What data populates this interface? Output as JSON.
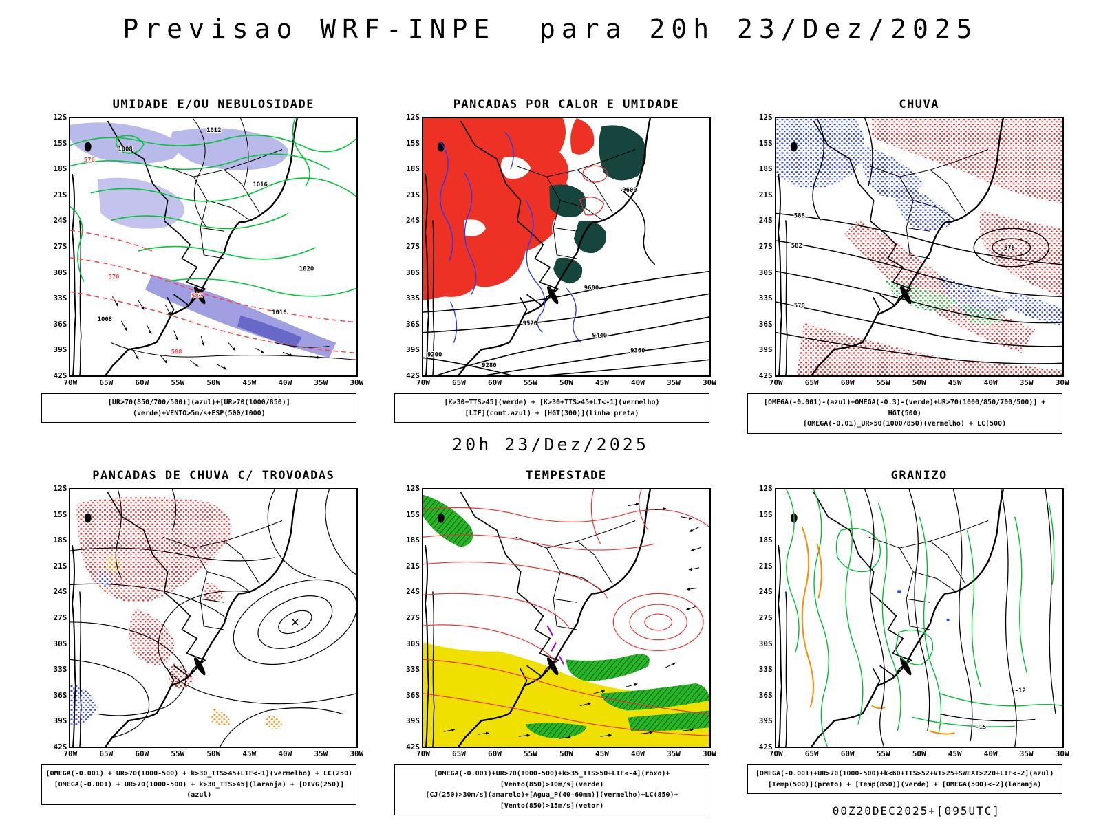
{
  "page": {
    "title": "Previsao WRF-INPE  para 20h 23/Dez/2025",
    "mid_label": "20h 23/Dez/2025",
    "footer": "00Z20DEC2025+[095UTC]"
  },
  "axes": {
    "lat": [
      "12S",
      "15S",
      "18S",
      "21S",
      "24S",
      "27S",
      "30S",
      "33S",
      "36S",
      "39S",
      "42S"
    ],
    "lon": [
      "70W",
      "65W",
      "60W",
      "55W",
      "50W",
      "45W",
      "40W",
      "35W",
      "30W"
    ]
  },
  "panels": [
    {
      "id": "umidade",
      "title": "UMIDADE E/OU NEBULOSIDADE",
      "caption_lines": [
        "[UR>70(850/700/500)](azul)+[UR>70(1000/850)](verde)+VENTO>5m/s+ESP(500/1000)"
      ]
    },
    {
      "id": "pancadas-calor",
      "title": "PANCADAS POR CALOR E UMIDADE",
      "caption_lines": [
        "[K>30+TTS>45](verde) + [K>30+TTS>45+LI<-1](vermelho)",
        "[LIF](cont.azul) + [HGT(300)](linha preta)"
      ]
    },
    {
      "id": "chuva",
      "title": "CHUVA",
      "caption_lines": [
        "[OMEGA(-0.001)-(azul)+OMEGA(-0.3)-(verde)+UR>70(1000/850/700/500)] + HGT(500)",
        "[OMEGA(-0.01)_UR>50(1000/850)(vermelho) + LC(500)"
      ]
    },
    {
      "id": "trovoadas",
      "title": "PANCADAS DE CHUVA C/ TROVOADAS",
      "caption_lines": [
        "[OMEGA(-0.001) + UR>70(1000-500) + k>30_TTS>45+LIF<-1](vermelho) + LC(250)",
        "[OMEGA(-0.001) + UR>70(1000-500) + k>30_TTS>45](laranja) + [DIVG(250)](azul)"
      ]
    },
    {
      "id": "tempestade",
      "title": "TEMPESTADE",
      "caption_lines": [
        "[OMEGA(-0.001)+UR>70(1000-500)+k>35_TTS>50+LIF<-4](roxo)+[Vento(850)>10m/s](verde)",
        "[CJ(250)>30m/s](amarelo)+[Agua_P(40-60mm)](vermelho)+LC(850)+[Vento(850)>15m/s](vetor)"
      ]
    },
    {
      "id": "granizo",
      "title": "GRANIZO",
      "caption_lines": [
        "[OMEGA(-0.001)+UR>70(1000-500)+k<60+TTS>52+VT>25+SWEAT>220+LIF<-2](azul)",
        "[Temp(500)](preto) + [Temp(850)](verde) + [OMEGA(500)<-2](laranja)"
      ]
    }
  ],
  "map_annotations": {
    "umidade": {
      "black": [
        "1012",
        "1008",
        "1016",
        "1020",
        "1016",
        "1008"
      ],
      "red": [
        "576",
        "570",
        "582",
        "588"
      ]
    },
    "pancadas_calor": {
      "black": [
        "9600",
        "9600",
        "9520",
        "9440",
        "9360",
        "9280",
        "9200"
      ]
    },
    "chuva": {
      "black": [
        "588",
        "582",
        "576",
        "570"
      ]
    },
    "granizo": {
      "black": [
        "-12",
        "-15"
      ]
    }
  },
  "legend_colors": {
    "red": "#e62e2e",
    "green": "#00bb33",
    "blue": "#2742ee",
    "orange": "#ff8a00",
    "yellow": "#f0e000",
    "purple": "#9900cc",
    "lavender": "#b9b9ea",
    "dark_teal": "#15453c",
    "black": "#000000"
  }
}
